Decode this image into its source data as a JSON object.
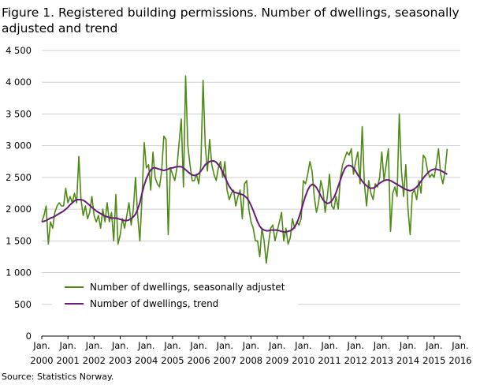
{
  "figure": {
    "title": "Figure 1. Registered building permissions. Number of dwellings, seasonally adjusted and trend",
    "source": "Source: Statistics Norway."
  },
  "chart_data": {
    "type": "line",
    "title": "Figure 1. Registered building permissions. Number of dwellings, seasonally adjusted and trend",
    "xlabel": "",
    "ylabel": "",
    "ylim": [
      0,
      4500
    ],
    "xlim": [
      "2000-01",
      "2016-01"
    ],
    "grid": true,
    "legend_position": "lower-left",
    "y_ticks": [
      "0",
      "500",
      "1 000",
      "1 500",
      "2 000",
      "2 500",
      "3 000",
      "3 500",
      "4 000",
      "4 500"
    ],
    "x_ticks": [
      {
        "top": "Jan.",
        "bottom": "2000"
      },
      {
        "top": "Jan.",
        "bottom": "2001"
      },
      {
        "top": "Jan.",
        "bottom": "2002"
      },
      {
        "top": "Jan.",
        "bottom": "2003"
      },
      {
        "top": "Jan.",
        "bottom": "2004"
      },
      {
        "top": "Jan.",
        "bottom": "2005"
      },
      {
        "top": "Jan.",
        "bottom": "2006"
      },
      {
        "top": "Jan.",
        "bottom": "2007"
      },
      {
        "top": "Jan.",
        "bottom": "2008"
      },
      {
        "top": "Jan.",
        "bottom": "2009"
      },
      {
        "top": "Jan.",
        "bottom": "2010"
      },
      {
        "top": "Jan.",
        "bottom": "2011"
      },
      {
        "top": "Jan.",
        "bottom": "2012"
      },
      {
        "top": "Jan.",
        "bottom": "2013"
      },
      {
        "top": "Jan.",
        "bottom": "2014"
      },
      {
        "top": "Jan.",
        "bottom": "2015"
      },
      {
        "top": "Jan.",
        "bottom": "2016"
      }
    ],
    "x_start": "2000-01",
    "x_step": "1 month",
    "series": [
      {
        "name": "Number of dwellings, seasonally adjustet",
        "color": "#4d8a15",
        "values": [
          1800,
          1900,
          2050,
          1450,
          1800,
          1700,
          1950,
          2050,
          2100,
          2050,
          2050,
          2330,
          2100,
          2200,
          2100,
          2250,
          2100,
          2830,
          2150,
          1900,
          2050,
          1850,
          1950,
          2200,
          1900,
          1800,
          1900,
          1700,
          2000,
          1800,
          2100,
          1800,
          1950,
          1500,
          2230,
          1450,
          1600,
          1850,
          1700,
          1900,
          2100,
          1750,
          2000,
          2500,
          1900,
          1500,
          2200,
          3050,
          2650,
          2700,
          2300,
          2900,
          2500,
          2400,
          2350,
          2600,
          3150,
          3100,
          1600,
          2650,
          2550,
          2450,
          2650,
          3050,
          3420,
          2350,
          4100,
          3000,
          2700,
          2450,
          2450,
          2550,
          2400,
          2700,
          4030,
          3000,
          2600,
          3100,
          2700,
          2550,
          2450,
          2650,
          2750,
          2500,
          2750,
          2300,
          2150,
          2250,
          2300,
          2050,
          2200,
          2300,
          1850,
          2400,
          2450,
          2000,
          1800,
          1700,
          1500,
          1500,
          1250,
          1700,
          1500,
          1150,
          1450,
          1700,
          1750,
          1500,
          1650,
          1800,
          1950,
          1500,
          1700,
          1450,
          1550,
          1850,
          1700,
          1800,
          1750,
          1850,
          2450,
          2400,
          2550,
          2750,
          2600,
          2200,
          1950,
          2100,
          2450,
          2300,
          1950,
          2200,
          2550,
          2050,
          2000,
          2200,
          2000,
          2500,
          2700,
          2800,
          2900,
          2850,
          2950,
          2550,
          2750,
          2900,
          2400,
          3300,
          2400,
          2050,
          2450,
          2250,
          2150,
          2400,
          2350,
          2500,
          2900,
          2450,
          2700,
          2950,
          1650,
          2250,
          2350,
          2200,
          3500,
          2600,
          2200,
          2700,
          2000,
          1600,
          2250,
          2300,
          2150,
          2450,
          2250,
          2850,
          2800,
          2600,
          2500,
          2550,
          2500,
          2700,
          2950,
          2550,
          2400,
          2600,
          2950
        ]
      },
      {
        "name": "Number of dwellings, trend",
        "color": "#6a1b7a",
        "values": [
          1800,
          1810,
          1820,
          1840,
          1860,
          1870,
          1890,
          1910,
          1930,
          1950,
          1970,
          2000,
          2030,
          2070,
          2100,
          2130,
          2150,
          2150,
          2150,
          2140,
          2120,
          2090,
          2060,
          2030,
          2000,
          1970,
          1950,
          1930,
          1910,
          1890,
          1880,
          1870,
          1860,
          1860,
          1860,
          1850,
          1840,
          1830,
          1820,
          1820,
          1830,
          1850,
          1880,
          1920,
          2000,
          2100,
          2250,
          2380,
          2480,
          2560,
          2620,
          2650,
          2650,
          2640,
          2630,
          2620,
          2610,
          2620,
          2630,
          2650,
          2650,
          2660,
          2670,
          2670,
          2670,
          2650,
          2620,
          2590,
          2560,
          2540,
          2530,
          2540,
          2560,
          2600,
          2650,
          2700,
          2730,
          2750,
          2760,
          2760,
          2740,
          2700,
          2650,
          2590,
          2510,
          2430,
          2360,
          2310,
          2270,
          2260,
          2250,
          2240,
          2230,
          2210,
          2180,
          2130,
          2060,
          1980,
          1890,
          1800,
          1730,
          1690,
          1670,
          1660,
          1660,
          1670,
          1670,
          1670,
          1670,
          1660,
          1650,
          1640,
          1640,
          1650,
          1660,
          1680,
          1720,
          1780,
          1870,
          1980,
          2100,
          2210,
          2300,
          2360,
          2390,
          2380,
          2340,
          2280,
          2210,
          2150,
          2110,
          2090,
          2100,
          2130,
          2180,
          2260,
          2360,
          2460,
          2560,
          2640,
          2680,
          2690,
          2680,
          2650,
          2600,
          2540,
          2490,
          2440,
          2400,
          2370,
          2340,
          2330,
          2330,
          2350,
          2380,
          2410,
          2430,
          2450,
          2460,
          2460,
          2450,
          2430,
          2410,
          2390,
          2370,
          2350,
          2330,
          2310,
          2300,
          2290,
          2300,
          2320,
          2350,
          2390,
          2440,
          2490,
          2530,
          2570,
          2600,
          2620,
          2630,
          2630,
          2620,
          2610,
          2590,
          2570,
          2550
        ]
      }
    ]
  }
}
